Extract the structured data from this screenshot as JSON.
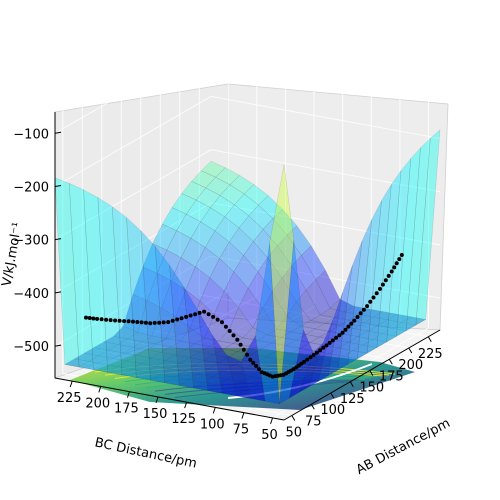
{
  "chart_data": {
    "type": "surface3d",
    "title": "",
    "xlabel": "AB Distance/pm",
    "ylabel": "BC Distance/pm",
    "zlabel": "V/kJ.mol⁻¹",
    "x_ticks": [
      "50",
      "75",
      "100",
      "125",
      "150",
      "175",
      "200",
      "225"
    ],
    "y_ticks": [
      "225",
      "200",
      "175",
      "150",
      "125",
      "100",
      "75",
      "50"
    ],
    "z_ticks": [
      "−100",
      "−200",
      "−300",
      "−400",
      "−500"
    ],
    "xlim": [
      40,
      240
    ],
    "ylim": [
      40,
      240
    ],
    "zlim": [
      -560,
      -60
    ],
    "grid": true,
    "colormap_surface": "jet",
    "colormap_contour": "viridis",
    "trajectory": {
      "color": "#000000",
      "series": [
        {
          "x": 238,
          "y": 72,
          "z": -430
        },
        {
          "x": 225,
          "y": 72,
          "z": -450
        },
        {
          "x": 210,
          "y": 72,
          "z": -470
        },
        {
          "x": 195,
          "y": 73,
          "z": -490
        },
        {
          "x": 180,
          "y": 74,
          "z": -505
        },
        {
          "x": 165,
          "y": 74,
          "z": -515
        },
        {
          "x": 150,
          "y": 75,
          "z": -522
        },
        {
          "x": 135,
          "y": 76,
          "z": -528
        },
        {
          "x": 120,
          "y": 77,
          "z": -533
        },
        {
          "x": 108,
          "y": 78,
          "z": -537
        },
        {
          "x": 98,
          "y": 80,
          "z": -540
        },
        {
          "x": 90,
          "y": 84,
          "z": -538
        },
        {
          "x": 85,
          "y": 90,
          "z": -528
        },
        {
          "x": 82,
          "y": 98,
          "z": -505
        },
        {
          "x": 80,
          "y": 108,
          "z": -470
        },
        {
          "x": 78,
          "y": 120,
          "z": -440
        },
        {
          "x": 77,
          "y": 135,
          "z": -425
        },
        {
          "x": 76,
          "y": 150,
          "z": -440
        },
        {
          "x": 75,
          "y": 165,
          "z": -455
        },
        {
          "x": 74,
          "y": 180,
          "z": -462
        },
        {
          "x": 74,
          "y": 195,
          "z": -465
        },
        {
          "x": 73,
          "y": 210,
          "z": -468
        },
        {
          "x": 72,
          "y": 225,
          "z": -470
        },
        {
          "x": 72,
          "y": 238,
          "z": -472
        }
      ]
    }
  }
}
